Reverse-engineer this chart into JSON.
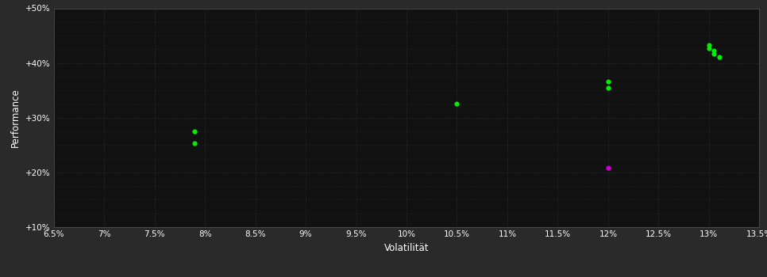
{
  "background_color": "#2a2a2a",
  "plot_bg_color": "#111111",
  "grid_color": "#444444",
  "text_color": "#ffffff",
  "xlabel": "Volatilität",
  "ylabel": "Performance",
  "xlim": [
    0.065,
    0.135
  ],
  "ylim": [
    0.1,
    0.5
  ],
  "xticks": [
    0.065,
    0.07,
    0.075,
    0.08,
    0.085,
    0.09,
    0.095,
    0.1,
    0.105,
    0.11,
    0.115,
    0.12,
    0.125,
    0.13,
    0.135
  ],
  "yticks": [
    0.1,
    0.2,
    0.3,
    0.4,
    0.5
  ],
  "green_color": "#00ee00",
  "magenta_color": "#cc00cc",
  "green_points": [
    [
      0.079,
      0.275
    ],
    [
      0.079,
      0.254
    ],
    [
      0.105,
      0.325
    ],
    [
      0.12,
      0.366
    ],
    [
      0.12,
      0.355
    ],
    [
      0.13,
      0.433
    ],
    [
      0.13,
      0.427
    ],
    [
      0.1305,
      0.422
    ],
    [
      0.1305,
      0.417
    ],
    [
      0.131,
      0.411
    ]
  ],
  "magenta_points": [
    [
      0.12,
      0.208
    ]
  ]
}
